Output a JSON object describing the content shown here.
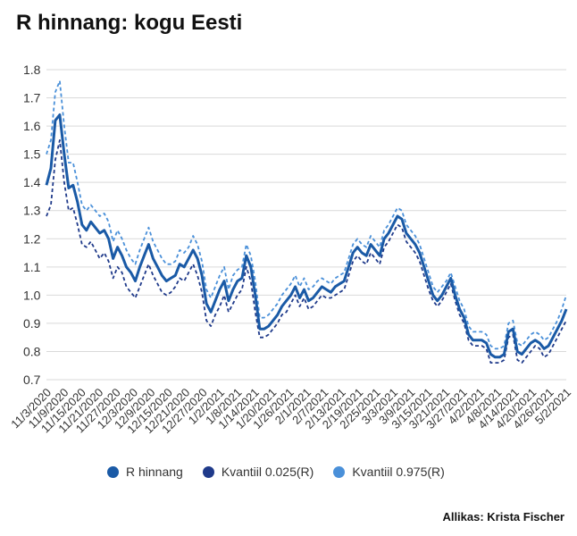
{
  "page": {
    "title": "R hinnang: kogu Eesti",
    "source": "Allikas: Krista Fischer"
  },
  "colors": {
    "r": "#1a5aa6",
    "q025": "#1f3a8a",
    "q975": "#4a90d9",
    "grid": "#d9d9d9"
  },
  "chart_data": {
    "type": "line",
    "title": "R hinnang: kogu Eesti",
    "xlabel": "",
    "ylabel": "",
    "ylim": [
      0.7,
      1.8
    ],
    "yticks": [
      "0.7",
      "0.8",
      "0.9",
      "1.0",
      "1.1",
      "1.2",
      "1.3",
      "1.4",
      "1.5",
      "1.6",
      "1.7",
      "1.8"
    ],
    "xticks": [
      "11/3/2020",
      "11/9/2020",
      "11/15/2020",
      "11/21/2020",
      "11/27/2020",
      "12/3/2020",
      "12/9/2020",
      "12/15/2020",
      "12/21/2020",
      "12/27/2020",
      "1/2/2021",
      "1/8/2021",
      "1/14/2021",
      "1/20/2021",
      "1/26/2021",
      "2/1/2021",
      "2/7/2021",
      "2/13/2021",
      "2/19/2021",
      "2/25/2021",
      "3/3/2021",
      "3/9/2021",
      "3/15/2021",
      "3/21/2021",
      "3/27/2021",
      "4/2/2021",
      "4/8/2021",
      "4/14/2021",
      "4/20/2021",
      "4/26/2021",
      "5/2/2021"
    ],
    "grid": true,
    "legend_position": "bottom",
    "series": [
      {
        "name": "R hinnang",
        "style": "solid",
        "values": [
          1.39,
          1.45,
          1.62,
          1.64,
          1.5,
          1.38,
          1.39,
          1.33,
          1.25,
          1.23,
          1.26,
          1.24,
          1.22,
          1.23,
          1.2,
          1.13,
          1.17,
          1.14,
          1.1,
          1.08,
          1.05,
          1.1,
          1.14,
          1.18,
          1.13,
          1.1,
          1.07,
          1.05,
          1.06,
          1.07,
          1.11,
          1.1,
          1.13,
          1.16,
          1.13,
          1.07,
          0.97,
          0.94,
          0.98,
          1.02,
          1.05,
          0.98,
          1.02,
          1.05,
          1.06,
          1.14,
          1.1,
          1.0,
          0.88,
          0.88,
          0.89,
          0.91,
          0.93,
          0.96,
          0.98,
          1.0,
          1.03,
          0.99,
          1.02,
          0.98,
          0.99,
          1.01,
          1.03,
          1.02,
          1.01,
          1.03,
          1.04,
          1.05,
          1.1,
          1.15,
          1.17,
          1.15,
          1.14,
          1.18,
          1.16,
          1.14,
          1.2,
          1.22,
          1.25,
          1.28,
          1.27,
          1.22,
          1.2,
          1.18,
          1.15,
          1.1,
          1.05,
          1.0,
          0.98,
          1.0,
          1.03,
          1.06,
          1.0,
          0.95,
          0.92,
          0.86,
          0.84,
          0.84,
          0.84,
          0.83,
          0.79,
          0.78,
          0.78,
          0.79,
          0.87,
          0.88,
          0.8,
          0.79,
          0.81,
          0.83,
          0.84,
          0.83,
          0.81,
          0.82,
          0.85,
          0.88,
          0.91,
          0.95
        ]
      },
      {
        "name": "Kvantiil 0.025(R)",
        "style": "dashed",
        "values": [
          1.28,
          1.32,
          1.48,
          1.55,
          1.4,
          1.3,
          1.31,
          1.25,
          1.18,
          1.17,
          1.19,
          1.16,
          1.13,
          1.15,
          1.12,
          1.06,
          1.1,
          1.08,
          1.03,
          1.01,
          0.99,
          1.03,
          1.07,
          1.11,
          1.07,
          1.04,
          1.01,
          1.0,
          1.01,
          1.03,
          1.06,
          1.05,
          1.08,
          1.11,
          1.07,
          1.01,
          0.91,
          0.89,
          0.93,
          0.96,
          1.0,
          0.94,
          0.97,
          1.0,
          1.02,
          1.1,
          1.05,
          0.94,
          0.85,
          0.85,
          0.86,
          0.88,
          0.9,
          0.93,
          0.94,
          0.97,
          1.0,
          0.96,
          0.99,
          0.95,
          0.96,
          0.98,
          1.0,
          0.99,
          0.99,
          1.0,
          1.01,
          1.02,
          1.07,
          1.12,
          1.14,
          1.12,
          1.11,
          1.15,
          1.13,
          1.11,
          1.17,
          1.19,
          1.22,
          1.25,
          1.24,
          1.19,
          1.17,
          1.15,
          1.12,
          1.07,
          1.02,
          0.98,
          0.96,
          0.98,
          1.01,
          1.04,
          0.98,
          0.93,
          0.9,
          0.84,
          0.82,
          0.82,
          0.82,
          0.81,
          0.76,
          0.76,
          0.76,
          0.77,
          0.85,
          0.86,
          0.77,
          0.76,
          0.78,
          0.8,
          0.82,
          0.81,
          0.78,
          0.79,
          0.82,
          0.85,
          0.88,
          0.91
        ]
      },
      {
        "name": "Kvantiil 0.975(R)",
        "style": "dashed",
        "values": [
          1.5,
          1.55,
          1.72,
          1.76,
          1.6,
          1.47,
          1.47,
          1.4,
          1.32,
          1.3,
          1.32,
          1.3,
          1.28,
          1.29,
          1.26,
          1.19,
          1.23,
          1.2,
          1.16,
          1.13,
          1.11,
          1.16,
          1.2,
          1.24,
          1.19,
          1.16,
          1.13,
          1.11,
          1.11,
          1.12,
          1.16,
          1.15,
          1.17,
          1.21,
          1.18,
          1.12,
          1.02,
          0.99,
          1.03,
          1.07,
          1.1,
          1.02,
          1.07,
          1.09,
          1.1,
          1.18,
          1.14,
          1.05,
          0.92,
          0.92,
          0.93,
          0.95,
          0.97,
          1.0,
          1.02,
          1.04,
          1.07,
          1.03,
          1.06,
          1.02,
          1.03,
          1.05,
          1.06,
          1.05,
          1.04,
          1.06,
          1.07,
          1.08,
          1.13,
          1.18,
          1.2,
          1.18,
          1.17,
          1.21,
          1.19,
          1.17,
          1.23,
          1.25,
          1.28,
          1.31,
          1.3,
          1.25,
          1.23,
          1.21,
          1.18,
          1.13,
          1.08,
          1.03,
          1.01,
          1.03,
          1.05,
          1.08,
          1.03,
          0.98,
          0.95,
          0.89,
          0.87,
          0.87,
          0.87,
          0.86,
          0.82,
          0.81,
          0.81,
          0.82,
          0.9,
          0.91,
          0.83,
          0.82,
          0.84,
          0.86,
          0.87,
          0.86,
          0.84,
          0.85,
          0.88,
          0.91,
          0.95,
          1.0
        ]
      }
    ]
  }
}
